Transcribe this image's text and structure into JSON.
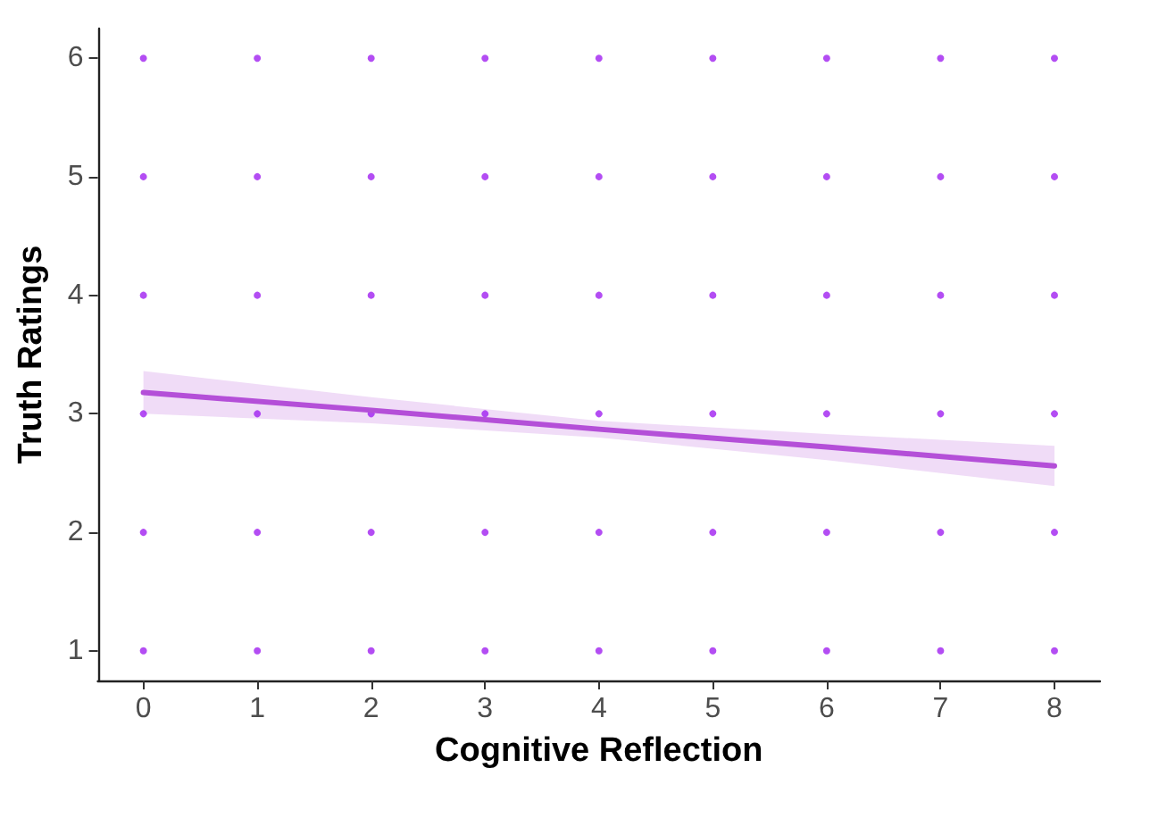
{
  "chart_data": {
    "type": "scatter",
    "xlabel": "Cognitive Reflection",
    "ylabel": "Truth Ratings",
    "xlim": [
      -0.4,
      8.4
    ],
    "ylim": [
      0.75,
      6.25
    ],
    "xticks": [
      0,
      1,
      2,
      3,
      4,
      5,
      6,
      7,
      8
    ],
    "yticks": [
      1,
      2,
      3,
      4,
      5,
      6
    ],
    "grid": false,
    "series": [
      {
        "marker": "circle",
        "color": "#a020f0",
        "x": [
          0,
          1,
          2,
          3,
          4,
          5,
          6,
          7,
          8,
          0,
          1,
          2,
          3,
          4,
          5,
          6,
          7,
          8,
          0,
          1,
          2,
          3,
          4,
          5,
          6,
          7,
          8,
          0,
          1,
          2,
          3,
          4,
          5,
          6,
          7,
          8,
          0,
          1,
          2,
          3,
          4,
          5,
          6,
          7,
          8,
          0,
          1,
          2,
          3,
          4,
          5,
          6,
          7,
          8
        ],
        "values": [
          1,
          1,
          1,
          1,
          1,
          1,
          1,
          1,
          1,
          2,
          2,
          2,
          2,
          2,
          2,
          2,
          2,
          2,
          3,
          3,
          3,
          3,
          3,
          3,
          3,
          3,
          3,
          4,
          4,
          4,
          4,
          4,
          4,
          4,
          4,
          4,
          5,
          5,
          5,
          5,
          5,
          5,
          5,
          5,
          5,
          6,
          6,
          6,
          6,
          6,
          6,
          6,
          6,
          6
        ]
      },
      {
        "type": "line",
        "color": "#b44fd8",
        "x": [
          0,
          2,
          4,
          6,
          8
        ],
        "values": [
          3.18,
          3.03,
          2.87,
          2.72,
          2.56
        ],
        "lower": [
          3.0,
          2.92,
          2.8,
          2.61,
          2.39
        ],
        "upper": [
          3.36,
          3.14,
          2.94,
          2.83,
          2.73
        ],
        "line_style": "solid"
      }
    ]
  }
}
